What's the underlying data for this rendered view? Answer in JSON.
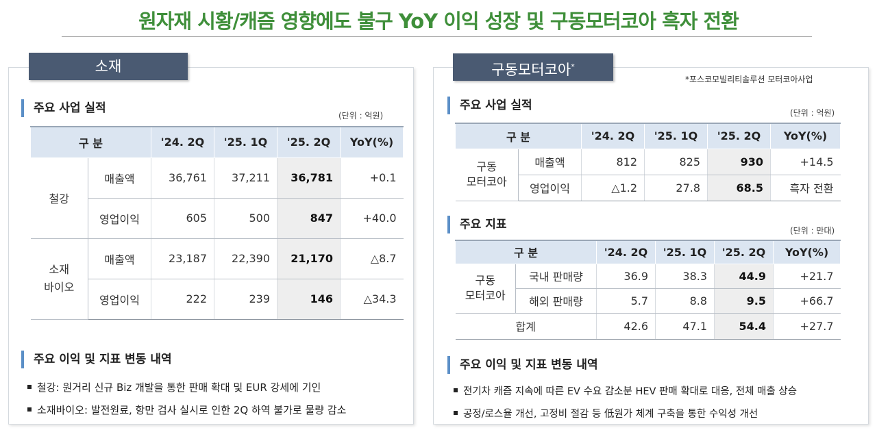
{
  "title": "원자재 시황/캐즘 영향에도 불구 YoY 이익 성장 및 구동모터코아 흑자 전환",
  "left": {
    "tab": "소재",
    "perf_heading": "주요 사업 실적",
    "unit": "(단위 : 억원)",
    "table": {
      "headers": [
        "구 분",
        "'24. 2Q",
        "'25. 1Q",
        "'25. 2Q",
        "YoY(%)"
      ],
      "groups": [
        {
          "name": "철강",
          "rows": [
            {
              "label": "매출액",
              "q24_2": "36,761",
              "q25_1": "37,211",
              "q25_2": "36,781",
              "yoy": "+0.1"
            },
            {
              "label": "영업이익",
              "q24_2": "605",
              "q25_1": "500",
              "q25_2": "847",
              "yoy": "+40.0"
            }
          ]
        },
        {
          "name": "소재\n바이오",
          "rows": [
            {
              "label": "매출액",
              "q24_2": "23,187",
              "q25_1": "22,390",
              "q25_2": "21,170",
              "yoy": "△8.7"
            },
            {
              "label": "영업이익",
              "q24_2": "222",
              "q25_1": "239",
              "q25_2": "146",
              "yoy": "△34.3"
            }
          ]
        }
      ]
    },
    "changes_heading": "주요 이익 및 지표 변동 내역",
    "bullets": [
      "철강: 원거리 신규 Biz 개발을 통한 판매 확대 및 EUR 강세에 기인",
      "소재바이오: 발전원료, 항만 검사 실시로 인한 2Q 하역 불가로 물량 감소"
    ]
  },
  "right": {
    "tab": "구동모터코아",
    "tab_mark": "*",
    "note": "*포스코모빌리티솔루션 모터코아사업",
    "perf_heading": "주요 사업 실적",
    "unit1": "(단위 : 억원)",
    "table1": {
      "headers": [
        "구 분",
        "'24. 2Q",
        "'25. 1Q",
        "'25. 2Q",
        "YoY(%)"
      ],
      "group": "구동\n모터코아",
      "rows": [
        {
          "label": "매출액",
          "q24_2": "812",
          "q25_1": "825",
          "q25_2": "930",
          "yoy": "+14.5"
        },
        {
          "label": "영업이익",
          "q24_2": "△1.2",
          "q25_1": "27.8",
          "q25_2": "68.5",
          "yoy": "흑자 전환"
        }
      ]
    },
    "kpi_heading": "주요 지표",
    "unit2": "(단위 : 만대)",
    "table2": {
      "headers": [
        "구 분",
        "'24. 2Q",
        "'25. 1Q",
        "'25. 2Q",
        "YoY(%)"
      ],
      "group": "구동\n모터코아",
      "rows": [
        {
          "label": "국내 판매량",
          "q24_2": "36.9",
          "q25_1": "38.3",
          "q25_2": "44.9",
          "yoy": "+21.7"
        },
        {
          "label": "해외 판매량",
          "q24_2": "5.7",
          "q25_1": "8.8",
          "q25_2": "9.5",
          "yoy": "+66.7"
        }
      ],
      "total": {
        "label": "합계",
        "q24_2": "42.6",
        "q25_1": "47.1",
        "q25_2": "54.4",
        "yoy": "+27.7"
      }
    },
    "changes_heading": "주요 이익 및 지표 변동 내역",
    "bullets": [
      "전기차 캐즘 지속에 따른 EV 수요 감소분 HEV 판매 확대로 대응, 전체 매출 상승",
      "공정/로스율 개선, 고정비 절감 등 低원가 체계 구축을 통한 수익성 개선"
    ]
  }
}
